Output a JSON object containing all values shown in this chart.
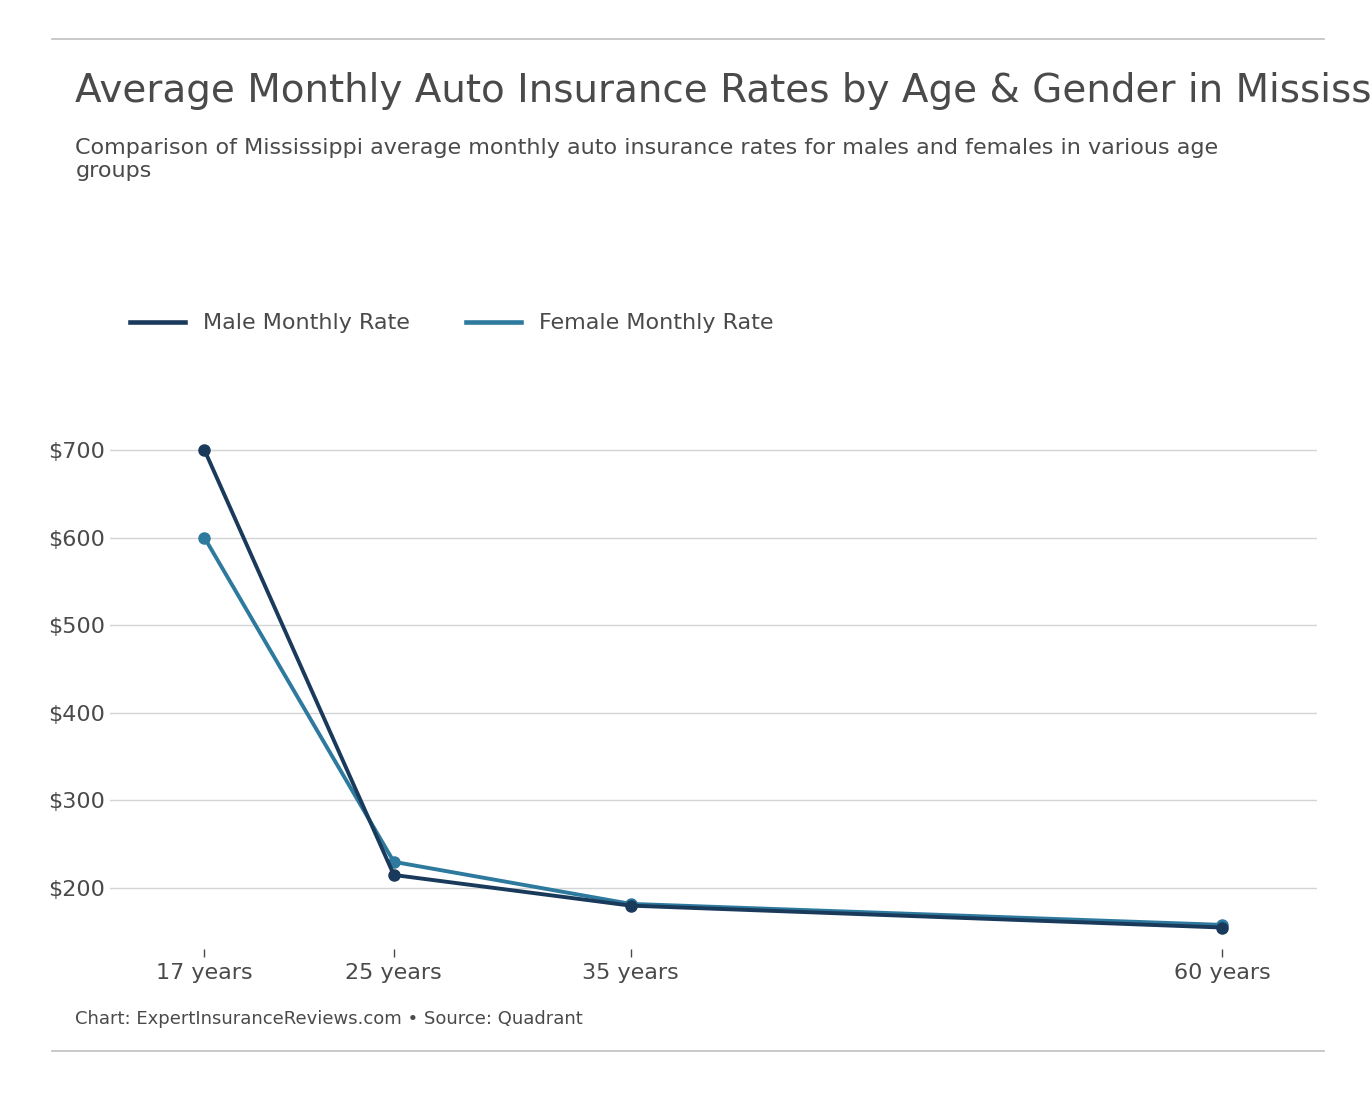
{
  "title": "Average Monthly Auto Insurance Rates by Age & Gender in Mississippi",
  "subtitle": "Comparison of Mississippi average monthly auto insurance rates for males and females in various age\ngroups",
  "footnote": "Chart: ExpertInsuranceReviews.com • Source: Quadrant",
  "ages": [
    17,
    25,
    35,
    60
  ],
  "age_labels": [
    "17 years",
    "25 years",
    "35 years",
    "60 years"
  ],
  "male_rates": [
    700,
    215,
    180,
    155
  ],
  "female_rates": [
    600,
    230,
    182,
    158
  ],
  "male_color": "#1a3a5c",
  "female_color": "#2e7a9e",
  "yticks": [
    200,
    300,
    400,
    500,
    600,
    700
  ],
  "ylim": [
    130,
    760
  ],
  "xlim": [
    13,
    64
  ],
  "background_color": "#ffffff",
  "grid_color": "#d4d4d4",
  "title_fontsize": 28,
  "subtitle_fontsize": 16,
  "footnote_fontsize": 13,
  "tick_fontsize": 16,
  "legend_fontsize": 16,
  "text_color": "#4a4a4a",
  "line_width": 2.8,
  "marker_size": 8
}
